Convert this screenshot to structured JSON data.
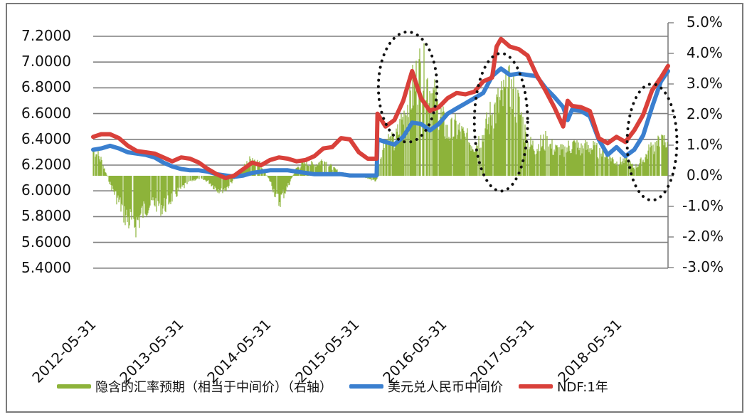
{
  "chart_data": {
    "type": "line+area",
    "title": "",
    "xlabel": "",
    "ylabel_left": "",
    "ylabel_right": "",
    "left_axis": {
      "ticks": [
        "7.2000",
        "7.0000",
        "6.8000",
        "6.6000",
        "6.4000",
        "6.2000",
        "6.0000",
        "5.8000",
        "5.6000",
        "5.4000"
      ],
      "ylim": [
        5.4,
        7.3
      ]
    },
    "right_axis": {
      "ticks": [
        "5.0%",
        "4.0%",
        "3.0%",
        "2.0%",
        "1.0%",
        "0.0%",
        "-1.0%",
        "-2.0%",
        "-3.0%"
      ],
      "ylim": [
        -3.0,
        5.0
      ]
    },
    "x_ticks": [
      "2012-05-31",
      "2013-05-31",
      "2014-05-31",
      "2015-05-31",
      "2016-05-31",
      "2017-05-31",
      "2018-05-31"
    ],
    "grid": true,
    "legend_position": "bottom",
    "x_range": [
      "2012-05-31",
      "2018-11-15"
    ],
    "series": [
      {
        "name": "隐含的汇率预期（相当于中间价）（右轴）",
        "type": "area",
        "axis": "right",
        "color": "#8db33a",
        "x": [
          2012.41,
          2012.5,
          2012.6,
          2012.7,
          2012.8,
          2012.9,
          2013.0,
          2013.1,
          2013.2,
          2013.3,
          2013.4,
          2013.5,
          2013.6,
          2013.7,
          2013.8,
          2013.9,
          2014.0,
          2014.1,
          2014.2,
          2014.3,
          2014.4,
          2014.5,
          2014.6,
          2014.7,
          2014.8,
          2014.9,
          2015.0,
          2015.1,
          2015.2,
          2015.3,
          2015.4,
          2015.5,
          2015.6,
          2015.65,
          2015.7,
          2015.8,
          2015.9,
          2016.0,
          2016.1,
          2016.2,
          2016.3,
          2016.4,
          2016.5,
          2016.6,
          2016.7,
          2016.8,
          2016.9,
          2017.0,
          2017.1,
          2017.2,
          2017.3,
          2017.4,
          2017.5,
          2017.6,
          2017.7,
          2017.8,
          2017.9,
          2018.0,
          2018.1,
          2018.2,
          2018.3,
          2018.4,
          2018.5,
          2018.6,
          2018.7,
          2018.8,
          2018.88
        ],
        "values": [
          1.0,
          0.6,
          -0.3,
          -1.0,
          -1.7,
          -1.8,
          -1.2,
          -1.0,
          -1.2,
          -0.8,
          -0.5,
          -0.2,
          -0.1,
          -0.2,
          -0.5,
          -0.5,
          -0.1,
          0.3,
          0.7,
          0.4,
          -0.2,
          -1.0,
          -0.4,
          0.3,
          0.5,
          0.4,
          0.6,
          0.3,
          0.1,
          0.1,
          0.0,
          -0.1,
          -0.2,
          0.8,
          1.4,
          1.2,
          2.2,
          3.2,
          4.0,
          3.3,
          2.4,
          1.6,
          1.8,
          1.4,
          1.2,
          1.5,
          2.4,
          2.8,
          3.2,
          2.6,
          1.2,
          1.1,
          1.3,
          1.0,
          0.9,
          1.2,
          1.0,
          1.1,
          0.9,
          0.8,
          0.5,
          0.6,
          0.3,
          0.6,
          1.1,
          1.2,
          1.4
        ]
      },
      {
        "name": "美元兑人民币中间价",
        "type": "line",
        "axis": "left",
        "color": "#3a7fcf",
        "x": [
          2012.41,
          2012.5,
          2012.6,
          2012.7,
          2012.8,
          2012.9,
          2013.0,
          2013.1,
          2013.2,
          2013.3,
          2013.4,
          2013.5,
          2013.6,
          2013.7,
          2013.8,
          2013.9,
          2014.0,
          2014.1,
          2014.2,
          2014.3,
          2014.4,
          2014.5,
          2014.6,
          2014.7,
          2014.8,
          2014.9,
          2015.0,
          2015.1,
          2015.2,
          2015.3,
          2015.4,
          2015.5,
          2015.6,
          2015.61,
          2015.7,
          2015.8,
          2015.9,
          2016.0,
          2016.1,
          2016.2,
          2016.3,
          2016.4,
          2016.5,
          2016.6,
          2016.7,
          2016.8,
          2016.9,
          2017.0,
          2017.1,
          2017.2,
          2017.3,
          2017.4,
          2017.5,
          2017.6,
          2017.7,
          2017.75,
          2017.8,
          2017.9,
          2018.0,
          2018.1,
          2018.2,
          2018.3,
          2018.4,
          2018.5,
          2018.6,
          2018.7,
          2018.8,
          2018.88
        ],
        "values": [
          6.32,
          6.33,
          6.35,
          6.33,
          6.3,
          6.29,
          6.28,
          6.26,
          6.22,
          6.19,
          6.17,
          6.16,
          6.16,
          6.15,
          6.13,
          6.12,
          6.11,
          6.12,
          6.14,
          6.15,
          6.16,
          6.16,
          6.16,
          6.15,
          6.14,
          6.13,
          6.13,
          6.13,
          6.13,
          6.12,
          6.12,
          6.12,
          6.12,
          6.4,
          6.38,
          6.36,
          6.42,
          6.53,
          6.52,
          6.47,
          6.52,
          6.6,
          6.64,
          6.68,
          6.72,
          6.76,
          6.89,
          6.95,
          6.9,
          6.91,
          6.9,
          6.89,
          6.8,
          6.73,
          6.65,
          6.55,
          6.63,
          6.62,
          6.58,
          6.4,
          6.28,
          6.34,
          6.27,
          6.32,
          6.43,
          6.65,
          6.85,
          6.93
        ]
      },
      {
        "name": "NDF:1年",
        "type": "line",
        "axis": "left",
        "color": "#d9403a",
        "x": [
          2012.41,
          2012.5,
          2012.6,
          2012.7,
          2012.8,
          2012.9,
          2013.0,
          2013.1,
          2013.2,
          2013.3,
          2013.4,
          2013.5,
          2013.6,
          2013.7,
          2013.8,
          2013.9,
          2014.0,
          2014.1,
          2014.2,
          2014.3,
          2014.4,
          2014.5,
          2014.6,
          2014.7,
          2014.8,
          2014.9,
          2015.0,
          2015.1,
          2015.2,
          2015.3,
          2015.4,
          2015.5,
          2015.6,
          2015.61,
          2015.7,
          2015.8,
          2015.9,
          2016.0,
          2016.1,
          2016.2,
          2016.3,
          2016.4,
          2016.5,
          2016.6,
          2016.7,
          2016.8,
          2016.9,
          2016.95,
          2017.0,
          2017.1,
          2017.2,
          2017.3,
          2017.4,
          2017.5,
          2017.6,
          2017.7,
          2017.75,
          2017.8,
          2017.9,
          2018.0,
          2018.1,
          2018.2,
          2018.3,
          2018.4,
          2018.5,
          2018.6,
          2018.7,
          2018.8,
          2018.88
        ],
        "values": [
          6.42,
          6.44,
          6.44,
          6.41,
          6.35,
          6.31,
          6.3,
          6.29,
          6.26,
          6.23,
          6.26,
          6.25,
          6.22,
          6.17,
          6.13,
          6.1,
          6.12,
          6.17,
          6.22,
          6.2,
          6.24,
          6.26,
          6.25,
          6.23,
          6.24,
          6.27,
          6.33,
          6.34,
          6.41,
          6.4,
          6.3,
          6.25,
          6.25,
          6.6,
          6.5,
          6.55,
          6.7,
          6.93,
          6.72,
          6.62,
          6.65,
          6.72,
          6.76,
          6.75,
          6.77,
          6.85,
          6.88,
          7.12,
          7.18,
          7.12,
          7.1,
          7.05,
          6.9,
          6.78,
          6.65,
          6.5,
          6.7,
          6.66,
          6.65,
          6.62,
          6.41,
          6.37,
          6.42,
          6.38,
          6.47,
          6.59,
          6.78,
          6.88,
          6.97
        ]
      }
    ],
    "annotations": [
      {
        "type": "dotted-ellipse",
        "cx": 2015.95,
        "cy_pct": 2.9,
        "rx_years": 0.33,
        "ry_pct": 1.8
      },
      {
        "type": "dotted-ellipse",
        "cx": 2017.0,
        "cy_pct": 1.75,
        "rx_years": 0.3,
        "ry_pct": 2.25
      },
      {
        "type": "dotted-ellipse",
        "cx": 2018.7,
        "cy_pct": 1.1,
        "rx_years": 0.28,
        "ry_pct": 1.9
      }
    ]
  },
  "legend": {
    "items": [
      {
        "label": "隐含的汇率预期（相当于中间价）（右轴）",
        "color": "#8db33a"
      },
      {
        "label": "美元兑人民币中间价",
        "color": "#3a7fcf"
      },
      {
        "label": "NDF:1年",
        "color": "#d9403a"
      }
    ]
  }
}
